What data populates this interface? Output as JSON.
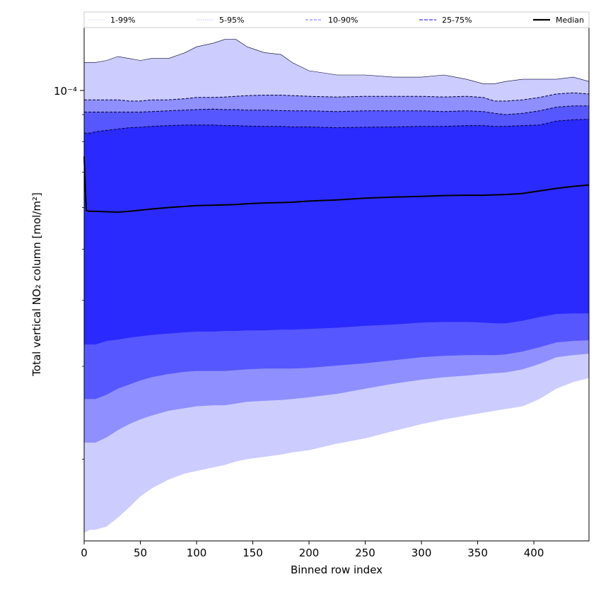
{
  "chart_data": {
    "type": "area",
    "xlabel": "Binned row index",
    "ylabel": "Total vertical NO₂ column [mol/m²]",
    "xlim": [
      0,
      449
    ],
    "ylim": [
      1.4e-05,
      0.000132
    ],
    "yscale": "log",
    "x_ticks": [
      0,
      50,
      100,
      150,
      200,
      250,
      300,
      350,
      400
    ],
    "y_tick_label": "10⁻⁴",
    "y_tick_value": 0.0001,
    "legend": {
      "placement": "top",
      "entries": [
        {
          "label": "1-99%",
          "color": "#dcdcf6"
        },
        {
          "label": "5-95%",
          "color": "#b7b7ff"
        },
        {
          "label": "10-90%",
          "color": "#8a8aff"
        },
        {
          "label": "25-75%",
          "color": "#5a5af0"
        },
        {
          "label": "Median",
          "color": "#000000"
        }
      ]
    },
    "x": [
      0,
      5,
      10,
      20,
      30,
      40,
      50,
      60,
      75,
      90,
      100,
      115,
      125,
      135,
      145,
      160,
      175,
      185,
      200,
      225,
      250,
      275,
      300,
      320,
      340,
      355,
      365,
      375,
      390,
      405,
      420,
      435,
      449
    ],
    "bands": [
      {
        "name": "1-99%",
        "color": "#ccccff",
        "upper": [
          0.000113,
          0.000113,
          0.000113,
          0.000114,
          0.000116,
          0.000115,
          0.000114,
          0.000115,
          0.000115,
          0.000118,
          0.000121,
          0.000123,
          0.000125,
          0.000125,
          0.000121,
          0.000118,
          0.000117,
          0.000113,
          0.000109,
          0.000107,
          0.000107,
          0.000106,
          0.000106,
          0.000107,
          0.000105,
          0.000103,
          0.000103,
          0.000104,
          0.000105,
          0.000105,
          0.000105,
          0.000106,
          0.000104
        ],
        "lower": [
          1.45e-05,
          1.47e-05,
          1.47e-05,
          1.49e-05,
          1.55e-05,
          1.62e-05,
          1.7e-05,
          1.76e-05,
          1.83e-05,
          1.88e-05,
          1.9e-05,
          1.93e-05,
          1.95e-05,
          1.98e-05,
          2e-05,
          2.02e-05,
          2.04e-05,
          2.06e-05,
          2.08e-05,
          2.14e-05,
          2.19e-05,
          2.26e-05,
          2.33e-05,
          2.38e-05,
          2.42e-05,
          2.45e-05,
          2.47e-05,
          2.49e-05,
          2.52e-05,
          2.6e-05,
          2.72e-05,
          2.8e-05,
          2.85e-05
        ]
      },
      {
        "name": "5-95%",
        "color": "#8f8fff",
        "upper": [
          9.6e-05,
          9.6e-05,
          9.6e-05,
          9.6e-05,
          9.6e-05,
          9.55e-05,
          9.55e-05,
          9.6e-05,
          9.6e-05,
          9.65e-05,
          9.7e-05,
          9.7e-05,
          9.72e-05,
          9.75e-05,
          9.78e-05,
          9.8e-05,
          9.8e-05,
          9.78e-05,
          9.75e-05,
          9.72e-05,
          9.75e-05,
          9.75e-05,
          9.75e-05,
          9.72e-05,
          9.75e-05,
          9.7e-05,
          9.55e-05,
          9.55e-05,
          9.6e-05,
          9.7e-05,
          9.85e-05,
          9.9e-05,
          9.85e-05
        ],
        "lower": [
          2.15e-05,
          2.15e-05,
          2.15e-05,
          2.2e-05,
          2.27e-05,
          2.33e-05,
          2.38e-05,
          2.42e-05,
          2.47e-05,
          2.5e-05,
          2.52e-05,
          2.53e-05,
          2.53e-05,
          2.55e-05,
          2.57e-05,
          2.58e-05,
          2.59e-05,
          2.6e-05,
          2.62e-05,
          2.66e-05,
          2.72e-05,
          2.78e-05,
          2.83e-05,
          2.86e-05,
          2.88e-05,
          2.9e-05,
          2.91e-05,
          2.92e-05,
          2.96e-05,
          3.03e-05,
          3.12e-05,
          3.15e-05,
          3.17e-05
        ]
      },
      {
        "name": "10-90%",
        "color": "#5757ff",
        "upper": [
          9.1e-05,
          9.1e-05,
          9.1e-05,
          9.1e-05,
          9.1e-05,
          9.1e-05,
          9.1e-05,
          9.12e-05,
          9.15e-05,
          9.18e-05,
          9.2e-05,
          9.22e-05,
          9.2e-05,
          9.2e-05,
          9.18e-05,
          9.18e-05,
          9.16e-05,
          9.15e-05,
          9.15e-05,
          9.12e-05,
          9.15e-05,
          9.15e-05,
          9.15e-05,
          9.12e-05,
          9.15e-05,
          9.12e-05,
          9.05e-05,
          9e-05,
          9.05e-05,
          9.15e-05,
          9.3e-05,
          9.35e-05,
          9.35e-05
        ],
        "lower": [
          2.6e-05,
          2.6e-05,
          2.6e-05,
          2.65e-05,
          2.72e-05,
          2.77e-05,
          2.82e-05,
          2.86e-05,
          2.9e-05,
          2.93e-05,
          2.94e-05,
          2.94e-05,
          2.94e-05,
          2.95e-05,
          2.96e-05,
          2.97e-05,
          2.97e-05,
          2.97e-05,
          2.98e-05,
          3.01e-05,
          3.04e-05,
          3.08e-05,
          3.12e-05,
          3.14e-05,
          3.15e-05,
          3.15e-05,
          3.15e-05,
          3.16e-05,
          3.2e-05,
          3.26e-05,
          3.33e-05,
          3.35e-05,
          3.36e-05
        ]
      },
      {
        "name": "25-75%",
        "color": "#2a2aff",
        "upper": [
          8.3e-05,
          8.3e-05,
          8.35e-05,
          8.4e-05,
          8.45e-05,
          8.5e-05,
          8.52e-05,
          8.55e-05,
          8.58e-05,
          8.6e-05,
          8.6e-05,
          8.6e-05,
          8.58e-05,
          8.58e-05,
          8.56e-05,
          8.55e-05,
          8.55e-05,
          8.53e-05,
          8.53e-05,
          8.5e-05,
          8.52e-05,
          8.53e-05,
          8.55e-05,
          8.55e-05,
          8.58e-05,
          8.58e-05,
          8.55e-05,
          8.55e-05,
          8.58e-05,
          8.6e-05,
          8.75e-05,
          8.8e-05,
          8.82e-05
        ],
        "lower": [
          3.3e-05,
          3.3e-05,
          3.3e-05,
          3.35e-05,
          3.37e-05,
          3.4e-05,
          3.42e-05,
          3.44e-05,
          3.46e-05,
          3.48e-05,
          3.49e-05,
          3.49e-05,
          3.5e-05,
          3.5e-05,
          3.51e-05,
          3.51e-05,
          3.52e-05,
          3.52e-05,
          3.53e-05,
          3.55e-05,
          3.58e-05,
          3.6e-05,
          3.63e-05,
          3.64e-05,
          3.64e-05,
          3.63e-05,
          3.62e-05,
          3.62e-05,
          3.66e-05,
          3.72e-05,
          3.77e-05,
          3.78e-05,
          3.78e-05
        ]
      }
    ],
    "median": {
      "name": "Median",
      "color": "#000000",
      "x": [
        0,
        1,
        2,
        5,
        10,
        20,
        30,
        40,
        50,
        60,
        75,
        90,
        100,
        115,
        125,
        135,
        145,
        160,
        175,
        185,
        200,
        225,
        250,
        275,
        300,
        320,
        340,
        355,
        365,
        375,
        390,
        405,
        420,
        435,
        449
      ],
      "values": [
        7.5e-05,
        6.5e-05,
        5.92e-05,
        5.9e-05,
        5.9e-05,
        5.89e-05,
        5.88e-05,
        5.9e-05,
        5.93e-05,
        5.96e-05,
        6e-05,
        6.03e-05,
        6.05e-05,
        6.06e-05,
        6.07e-05,
        6.08e-05,
        6.1e-05,
        6.12e-05,
        6.13e-05,
        6.14e-05,
        6.17e-05,
        6.2e-05,
        6.25e-05,
        6.28e-05,
        6.3e-05,
        6.32e-05,
        6.33e-05,
        6.33e-05,
        6.34e-05,
        6.35e-05,
        6.38e-05,
        6.45e-05,
        6.52e-05,
        6.58e-05,
        6.62e-05
      ]
    }
  }
}
